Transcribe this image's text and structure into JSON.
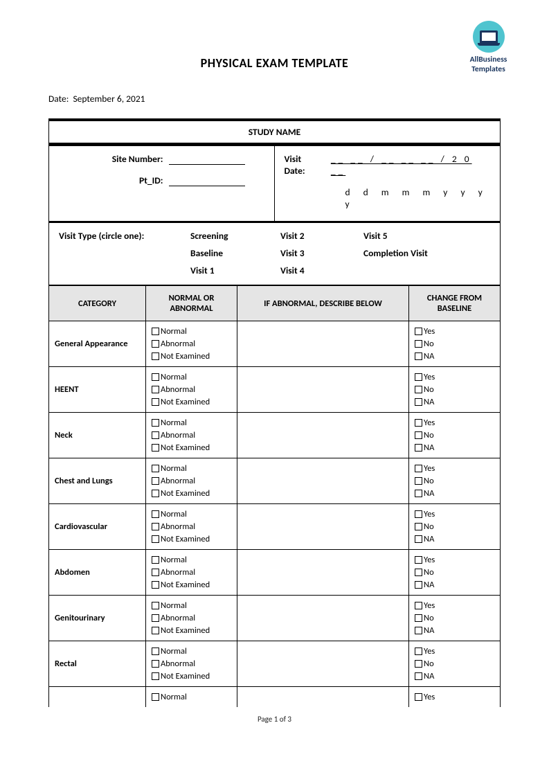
{
  "logo": {
    "line1": "AllBusiness",
    "line2": "Templates"
  },
  "title": "PHYSICAL EXAM TEMPLATE",
  "date_label": "Date:",
  "date_value": "September 6, 2021",
  "study_name_label": "STUDY NAME",
  "site_number_label": "Site Number:",
  "pt_id_label": "Pt_ID:",
  "visit_date_label": "Visit Date:",
  "visit_date_slots": "__ __ / __ __ __ / 2 0 __",
  "visit_date_hint": "d d  m m m  y y y y",
  "visit_type_label": "Visit Type (circle one):",
  "visit_options": {
    "r1c1": "Screening",
    "r1c2": "Visit 2",
    "r1c3": "Visit 5",
    "r2c1": "Baseline",
    "r2c2": "Visit 3",
    "r2c3": "Completion Visit",
    "r3c1": "Visit 1",
    "r3c2": "Visit 4"
  },
  "columns": {
    "category": "CATEGORY",
    "normal": "NORMAL OR ABNORMAL",
    "describe": "IF ABNORMAL, DESCRIBE BELOW",
    "change": "CHANGE FROM BASELINE"
  },
  "norm_opts": {
    "a": "Normal",
    "b": "Abnormal",
    "c": "Not Examined"
  },
  "chg_opts": {
    "a": "Yes",
    "b": "No",
    "c": "NA"
  },
  "categories": [
    "General Appearance",
    "HEENT",
    "Neck",
    "Chest and Lungs",
    "Cardiovascular",
    "Abdomen",
    "Genitourinary",
    "Rectal"
  ],
  "page_footer": "Page 1 of 3"
}
